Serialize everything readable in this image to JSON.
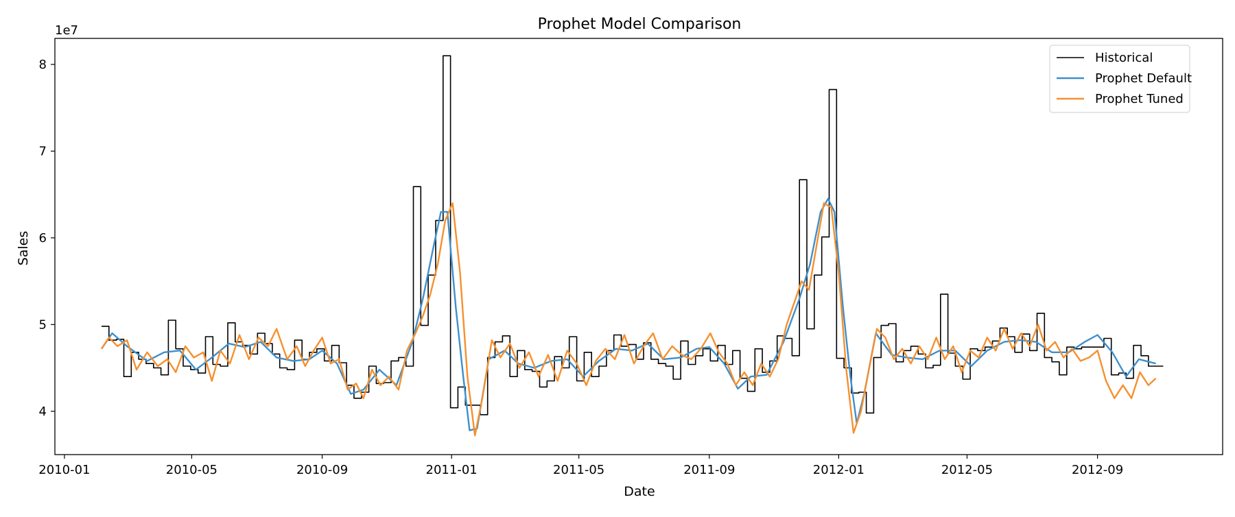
{
  "chart_data": {
    "type": "line",
    "title": "Prophet Model Comparison",
    "xlabel": "Date",
    "ylabel": "Sales",
    "y_offset_label": "1e7",
    "x_tick_labels": [
      "2010-01",
      "2010-05",
      "2010-09",
      "2011-01",
      "2011-05",
      "2011-09",
      "2012-01",
      "2012-05",
      "2012-09"
    ],
    "y_tick_labels": [
      "4",
      "5",
      "6",
      "7",
      "8"
    ],
    "y_ticks": [
      4,
      5,
      6,
      7,
      8
    ],
    "xlim": [
      "2009-12-23",
      "2012-12-28"
    ],
    "ylim": [
      3.5,
      8.3
    ],
    "grid": false,
    "legend_position": "top-right",
    "series": [
      {
        "name": "Historical",
        "color": "#000000",
        "style": "step",
        "x": [
          "2010-02-05",
          "2010-02-12",
          "2010-02-19",
          "2010-02-26",
          "2010-03-05",
          "2010-03-12",
          "2010-03-19",
          "2010-03-26",
          "2010-04-02",
          "2010-04-09",
          "2010-04-16",
          "2010-04-23",
          "2010-04-30",
          "2010-05-07",
          "2010-05-14",
          "2010-05-21",
          "2010-05-28",
          "2010-06-04",
          "2010-06-11",
          "2010-06-18",
          "2010-06-25",
          "2010-07-02",
          "2010-07-09",
          "2010-07-16",
          "2010-07-23",
          "2010-07-30",
          "2010-08-06",
          "2010-08-13",
          "2010-08-20",
          "2010-08-27",
          "2010-09-03",
          "2010-09-10",
          "2010-09-17",
          "2010-09-24",
          "2010-10-01",
          "2010-10-08",
          "2010-10-15",
          "2010-10-22",
          "2010-10-29",
          "2010-11-05",
          "2010-11-12",
          "2010-11-19",
          "2010-11-26",
          "2010-12-03",
          "2010-12-10",
          "2010-12-17",
          "2010-12-24",
          "2010-12-31",
          "2011-01-07",
          "2011-01-14",
          "2011-01-21",
          "2011-01-28",
          "2011-02-04",
          "2011-02-11",
          "2011-02-18",
          "2011-02-25",
          "2011-03-04",
          "2011-03-11",
          "2011-03-18",
          "2011-03-25",
          "2011-04-01",
          "2011-04-08",
          "2011-04-15",
          "2011-04-22",
          "2011-04-29",
          "2011-05-06",
          "2011-05-13",
          "2011-05-20",
          "2011-05-27",
          "2011-06-03",
          "2011-06-10",
          "2011-06-17",
          "2011-06-24",
          "2011-07-01",
          "2011-07-08",
          "2011-07-15",
          "2011-07-22",
          "2011-07-29",
          "2011-08-05",
          "2011-08-12",
          "2011-08-19",
          "2011-08-26",
          "2011-09-02",
          "2011-09-09",
          "2011-09-16",
          "2011-09-23",
          "2011-09-30",
          "2011-10-07",
          "2011-10-14",
          "2011-10-21",
          "2011-10-28",
          "2011-11-04",
          "2011-11-11",
          "2011-11-18",
          "2011-11-25",
          "2011-12-02",
          "2011-12-09",
          "2011-12-16",
          "2011-12-23",
          "2011-12-30",
          "2012-01-06",
          "2012-01-13",
          "2012-01-20",
          "2012-01-27",
          "2012-02-03",
          "2012-02-10",
          "2012-02-17",
          "2012-02-24",
          "2012-03-02",
          "2012-03-09",
          "2012-03-16",
          "2012-03-23",
          "2012-03-30",
          "2012-04-06",
          "2012-04-13",
          "2012-04-20",
          "2012-04-27",
          "2012-05-04",
          "2012-05-11",
          "2012-05-18",
          "2012-05-25",
          "2012-06-01",
          "2012-06-08",
          "2012-06-15",
          "2012-06-22",
          "2012-06-29",
          "2012-07-06",
          "2012-07-13",
          "2012-07-20",
          "2012-07-27",
          "2012-08-03",
          "2012-08-10",
          "2012-08-17",
          "2012-08-24",
          "2012-08-31",
          "2012-09-07",
          "2012-09-14",
          "2012-09-21",
          "2012-09-28",
          "2012-10-05",
          "2012-10-12",
          "2012-10-19",
          "2012-10-26"
        ],
        "values": [
          4.98,
          4.82,
          4.83,
          4.4,
          4.68,
          4.6,
          4.55,
          4.5,
          4.42,
          5.05,
          4.72,
          4.52,
          4.48,
          4.44,
          4.86,
          4.54,
          4.52,
          5.02,
          4.8,
          4.76,
          4.66,
          4.9,
          4.78,
          4.66,
          4.5,
          4.48,
          4.82,
          4.6,
          4.68,
          4.72,
          4.58,
          4.76,
          4.56,
          4.3,
          4.15,
          4.22,
          4.52,
          4.32,
          4.33,
          4.58,
          4.62,
          4.52,
          6.59,
          4.99,
          5.57,
          6.2,
          8.1,
          4.04,
          4.28,
          4.07,
          4.07,
          3.96,
          4.62,
          4.8,
          4.87,
          4.4,
          4.7,
          4.48,
          4.46,
          4.28,
          4.35,
          4.63,
          4.5,
          4.86,
          4.35,
          4.68,
          4.4,
          4.52,
          4.7,
          4.88,
          4.75,
          4.77,
          4.6,
          4.79,
          4.6,
          4.55,
          4.52,
          4.37,
          4.81,
          4.54,
          4.64,
          4.72,
          4.58,
          4.76,
          4.54,
          4.7,
          4.38,
          4.23,
          4.72,
          4.45,
          4.58,
          4.87,
          4.84,
          4.64,
          6.67,
          4.95,
          5.57,
          6.01,
          7.71,
          4.61,
          4.5,
          4.21,
          4.22,
          3.98,
          4.62,
          4.99,
          5.01,
          4.57,
          4.7,
          4.75,
          4.66,
          4.5,
          4.53,
          5.35,
          4.67,
          4.52,
          4.37,
          4.72,
          4.7,
          4.74,
          4.81,
          4.96,
          4.86,
          4.68,
          4.89,
          4.7,
          5.13,
          4.62,
          4.57,
          4.42,
          4.74,
          4.72,
          4.74,
          4.74,
          4.74,
          4.84,
          4.42,
          4.44,
          4.38,
          4.76,
          4.64,
          4.52,
          4.52
        ]
      },
      {
        "name": "Prophet Default",
        "color": "#3d8fcc",
        "style": "line",
        "x": [
          "2010-02-05",
          "2010-02-15",
          "2010-03-01",
          "2010-03-20",
          "2010-04-05",
          "2010-04-20",
          "2010-05-05",
          "2010-05-20",
          "2010-06-05",
          "2010-06-20",
          "2010-07-05",
          "2010-07-20",
          "2010-08-05",
          "2010-08-20",
          "2010-09-01",
          "2010-09-15",
          "2010-09-28",
          "2010-10-10",
          "2010-10-25",
          "2010-11-10",
          "2010-11-25",
          "2010-12-05",
          "2010-12-15",
          "2010-12-22",
          "2010-12-28",
          "2011-01-05",
          "2011-01-12",
          "2011-01-18",
          "2011-01-25",
          "2011-02-05",
          "2011-02-20",
          "2011-03-05",
          "2011-03-20",
          "2011-04-05",
          "2011-04-20",
          "2011-05-05",
          "2011-05-20",
          "2011-06-05",
          "2011-06-20",
          "2011-07-05",
          "2011-07-20",
          "2011-08-05",
          "2011-08-20",
          "2011-09-01",
          "2011-09-15",
          "2011-09-28",
          "2011-10-10",
          "2011-10-25",
          "2011-11-10",
          "2011-11-25",
          "2011-12-05",
          "2011-12-15",
          "2011-12-22",
          "2011-12-28",
          "2012-01-05",
          "2012-01-12",
          "2012-01-18",
          "2012-01-25",
          "2012-02-05",
          "2012-02-20",
          "2012-03-05",
          "2012-03-20",
          "2012-04-05",
          "2012-04-20",
          "2012-05-05",
          "2012-05-20",
          "2012-06-05",
          "2012-06-20",
          "2012-07-05",
          "2012-07-20",
          "2012-08-05",
          "2012-08-20",
          "2012-09-01",
          "2012-09-15",
          "2012-09-28",
          "2012-10-10",
          "2012-10-26"
        ],
        "values": [
          4.72,
          4.9,
          4.75,
          4.58,
          4.68,
          4.7,
          4.48,
          4.62,
          4.78,
          4.74,
          4.8,
          4.62,
          4.58,
          4.6,
          4.7,
          4.55,
          4.2,
          4.25,
          4.48,
          4.3,
          4.8,
          5.3,
          5.9,
          6.3,
          6.3,
          5.2,
          4.4,
          3.78,
          3.8,
          4.6,
          4.7,
          4.55,
          4.5,
          4.58,
          4.6,
          4.4,
          4.58,
          4.72,
          4.7,
          4.78,
          4.6,
          4.62,
          4.72,
          4.74,
          4.55,
          4.26,
          4.4,
          4.42,
          4.8,
          5.3,
          5.7,
          6.3,
          6.45,
          6.3,
          5.2,
          4.4,
          3.86,
          4.2,
          4.9,
          4.65,
          4.62,
          4.6,
          4.7,
          4.7,
          4.52,
          4.7,
          4.8,
          4.82,
          4.8,
          4.68,
          4.68,
          4.8,
          4.88,
          4.68,
          4.4,
          4.6,
          4.55
        ]
      },
      {
        "name": "Prophet Tuned",
        "color": "#f5902e",
        "style": "line",
        "x": [
          "2010-02-05",
          "2010-02-12",
          "2010-02-20",
          "2010-03-01",
          "2010-03-10",
          "2010-03-20",
          "2010-03-30",
          "2010-04-08",
          "2010-04-16",
          "2010-04-25",
          "2010-05-03",
          "2010-05-12",
          "2010-05-20",
          "2010-05-28",
          "2010-06-06",
          "2010-06-15",
          "2010-06-24",
          "2010-07-03",
          "2010-07-12",
          "2010-07-20",
          "2010-07-30",
          "2010-08-08",
          "2010-08-16",
          "2010-08-24",
          "2010-09-01",
          "2010-09-09",
          "2010-09-17",
          "2010-09-25",
          "2010-10-03",
          "2010-10-10",
          "2010-10-18",
          "2010-10-26",
          "2010-11-03",
          "2010-11-12",
          "2010-11-20",
          "2010-11-28",
          "2010-12-05",
          "2010-12-12",
          "2010-12-19",
          "2010-12-26",
          "2011-01-02",
          "2011-01-09",
          "2011-01-16",
          "2011-01-23",
          "2011-01-30",
          "2011-02-08",
          "2011-02-16",
          "2011-02-25",
          "2011-03-06",
          "2011-03-15",
          "2011-03-24",
          "2011-04-02",
          "2011-04-11",
          "2011-04-20",
          "2011-04-29",
          "2011-05-08",
          "2011-05-17",
          "2011-05-26",
          "2011-06-04",
          "2011-06-13",
          "2011-06-22",
          "2011-07-01",
          "2011-07-10",
          "2011-07-19",
          "2011-07-28",
          "2011-08-06",
          "2011-08-15",
          "2011-08-24",
          "2011-09-02",
          "2011-09-10",
          "2011-09-18",
          "2011-09-26",
          "2011-10-04",
          "2011-10-12",
          "2011-10-20",
          "2011-10-28",
          "2011-11-05",
          "2011-11-13",
          "2011-11-20",
          "2011-11-27",
          "2011-12-04",
          "2011-12-11",
          "2011-12-18",
          "2011-12-25",
          "2012-01-01",
          "2012-01-08",
          "2012-01-15",
          "2012-01-22",
          "2012-01-29",
          "2012-02-06",
          "2012-02-14",
          "2012-02-22",
          "2012-03-01",
          "2012-03-09",
          "2012-03-17",
          "2012-03-25",
          "2012-04-02",
          "2012-04-10",
          "2012-04-18",
          "2012-04-26",
          "2012-05-04",
          "2012-05-12",
          "2012-05-20",
          "2012-05-28",
          "2012-06-05",
          "2012-06-13",
          "2012-06-21",
          "2012-06-29",
          "2012-07-07",
          "2012-07-15",
          "2012-07-23",
          "2012-07-31",
          "2012-08-08",
          "2012-08-16",
          "2012-08-24",
          "2012-09-01",
          "2012-09-09",
          "2012-09-17",
          "2012-09-25",
          "2012-10-03",
          "2012-10-11",
          "2012-10-19",
          "2012-10-26"
        ],
        "values": [
          4.72,
          4.85,
          4.75,
          4.82,
          4.48,
          4.68,
          4.52,
          4.6,
          4.45,
          4.75,
          4.62,
          4.68,
          4.35,
          4.7,
          4.55,
          4.88,
          4.6,
          4.85,
          4.75,
          4.95,
          4.6,
          4.75,
          4.52,
          4.7,
          4.85,
          4.55,
          4.6,
          4.25,
          4.32,
          4.15,
          4.48,
          4.3,
          4.4,
          4.25,
          4.7,
          4.9,
          5.1,
          5.35,
          5.7,
          6.2,
          6.4,
          5.6,
          4.4,
          3.72,
          4.15,
          4.82,
          4.62,
          4.78,
          4.5,
          4.68,
          4.4,
          4.65,
          4.35,
          4.7,
          4.55,
          4.3,
          4.58,
          4.72,
          4.6,
          4.88,
          4.55,
          4.75,
          4.9,
          4.6,
          4.75,
          4.65,
          4.6,
          4.72,
          4.9,
          4.68,
          4.55,
          4.3,
          4.45,
          4.3,
          4.55,
          4.4,
          4.6,
          5.0,
          5.25,
          5.5,
          5.4,
          5.9,
          6.4,
          6.35,
          5.6,
          4.5,
          3.75,
          4.0,
          4.45,
          4.95,
          4.85,
          4.6,
          4.72,
          4.55,
          4.75,
          4.6,
          4.85,
          4.6,
          4.75,
          4.45,
          4.7,
          4.62,
          4.85,
          4.7,
          4.95,
          4.72,
          4.9,
          4.75,
          5.0,
          4.7,
          4.8,
          4.62,
          4.72,
          4.58,
          4.62,
          4.7,
          4.35,
          4.15,
          4.3,
          4.15,
          4.45,
          4.3,
          4.38
        ]
      }
    ]
  }
}
